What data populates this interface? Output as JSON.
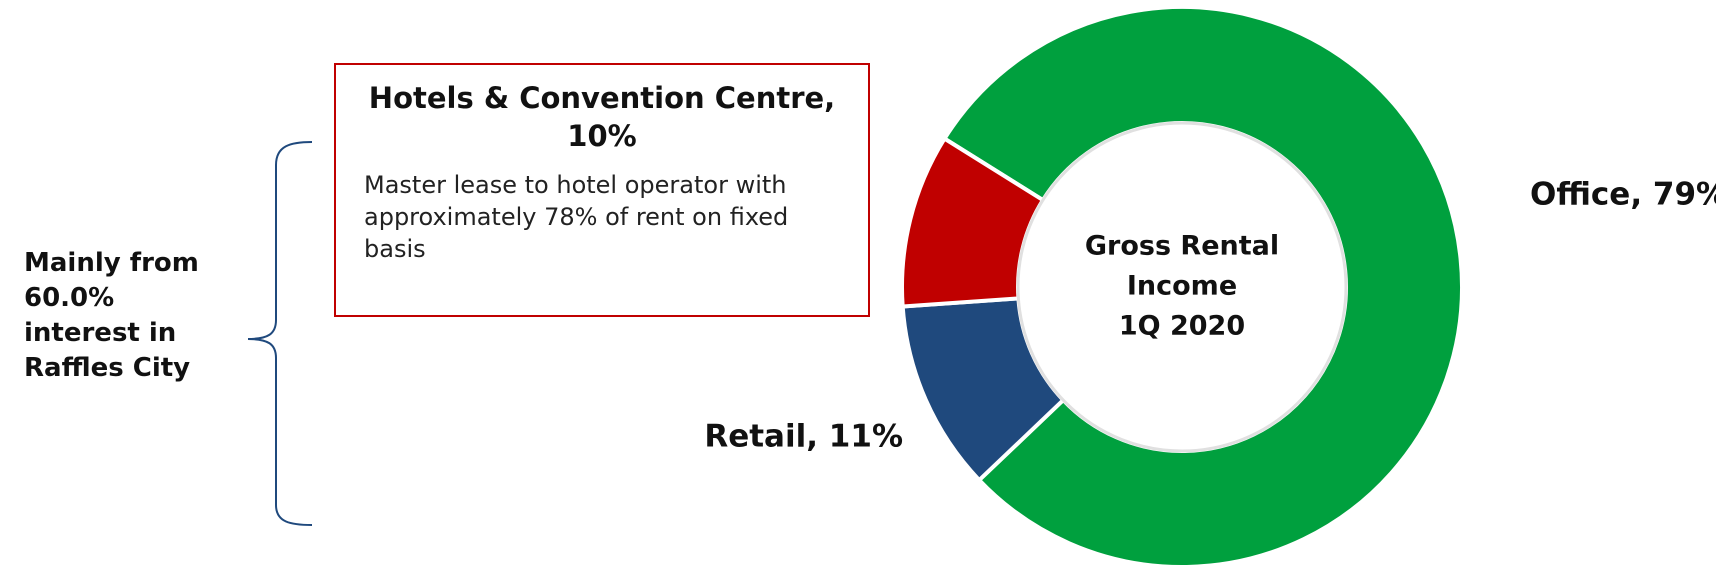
{
  "chart_data": {
    "type": "pie",
    "donut": true,
    "values": [
      79,
      11,
      10
    ],
    "value_labels": [
      "Office, 79%",
      "Retail, 11%",
      "Hotels & Convention Centre, 10%"
    ],
    "colors": [
      "#00a03e",
      "#1f497d",
      "#c00000"
    ],
    "center_text": [
      "Gross Rental",
      "Income",
      "1Q 2020"
    ],
    "annotation": {
      "title": "Hotels & Convention Centre, 10%",
      "text": "Master lease to hotel operator with approximately 78% of rent on fixed basis"
    },
    "bracket_text": "Mainly from 60.0% interest in Raffles City"
  }
}
